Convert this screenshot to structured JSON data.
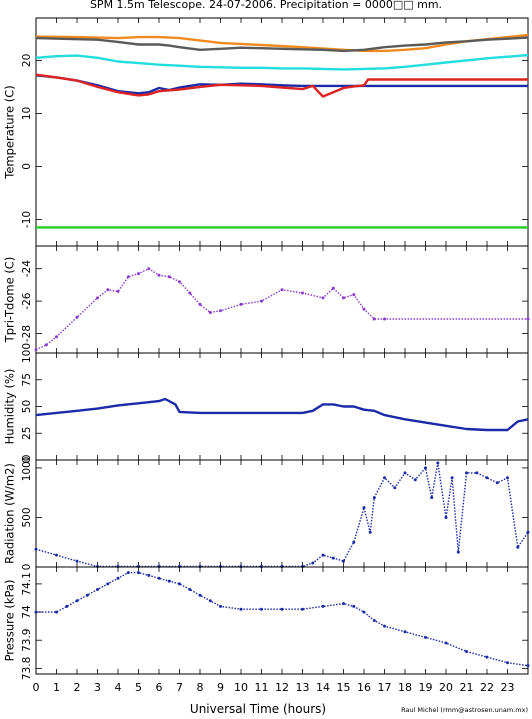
{
  "title": "SPM 1.5m Telescope. 24-07-2006. Precipitation = 0000□□ mm.",
  "x_axis": {
    "label": "Universal Time (hours)",
    "range": [
      0,
      24
    ],
    "ticks": [
      "0",
      "1",
      "2",
      "3",
      "4",
      "5",
      "6",
      "7",
      "8",
      "9",
      "10",
      "11",
      "12",
      "13",
      "14",
      "15",
      "16",
      "17",
      "18",
      "19",
      "20",
      "21",
      "22",
      "23"
    ]
  },
  "credit": "Raul Michel (rmm@astrosen.unam.mx)",
  "chart_data": [
    {
      "type": "line",
      "ylabel": "Temperature (C)",
      "ylim": [
        -15,
        28
      ],
      "yticks": [
        "-10",
        "0",
        "10",
        "20"
      ],
      "grid": false,
      "series": [
        {
          "color": "#f08a1e",
          "x": [
            0,
            2,
            4,
            5,
            6,
            7,
            9,
            11,
            13,
            15,
            16,
            17,
            18,
            19,
            20,
            21,
            22,
            23,
            24
          ],
          "values": [
            24.5,
            24.4,
            24.2,
            24.4,
            24.4,
            24.2,
            23.3,
            22.9,
            22.5,
            22.0,
            21.8,
            21.8,
            22.0,
            22.3,
            23.0,
            23.6,
            24.0,
            24.4,
            24.8
          ]
        },
        {
          "color": "#5a5a5a",
          "x": [
            0,
            2,
            3,
            4,
            5,
            6,
            6.5,
            7,
            8,
            9,
            10,
            11,
            12,
            13,
            14,
            15,
            16,
            17,
            18,
            19,
            20,
            21,
            22,
            23,
            24
          ],
          "values": [
            24.2,
            24.0,
            23.9,
            23.5,
            23.0,
            23.0,
            22.8,
            22.5,
            22.0,
            22.2,
            22.4,
            22.3,
            22.2,
            22.1,
            22.0,
            21.8,
            22.0,
            22.5,
            22.8,
            23.0,
            23.4,
            23.6,
            23.9,
            24.1,
            24.3
          ]
        },
        {
          "color": "#22dddd",
          "x": [
            0,
            1,
            2,
            3,
            4,
            5,
            6,
            7,
            8,
            9,
            10,
            11,
            12,
            13,
            14,
            15,
            16,
            17,
            18,
            19,
            20,
            21,
            22,
            23,
            24
          ],
          "values": [
            20.5,
            20.8,
            20.9,
            20.5,
            19.8,
            19.5,
            19.2,
            19.0,
            18.8,
            18.7,
            18.6,
            18.6,
            18.5,
            18.5,
            18.4,
            18.3,
            18.4,
            18.5,
            18.8,
            19.2,
            19.6,
            20.0,
            20.4,
            20.7,
            21.0
          ]
        },
        {
          "color": "#1a2aa8",
          "x": [
            0,
            1,
            2,
            3,
            4,
            5,
            5.5,
            6,
            6.5,
            7,
            8,
            9,
            10,
            11,
            12,
            13,
            14,
            15,
            16,
            17,
            24
          ],
          "values": [
            17.2,
            16.8,
            16.2,
            15.3,
            14.2,
            13.8,
            14.0,
            14.8,
            14.4,
            14.9,
            15.5,
            15.4,
            15.6,
            15.5,
            15.3,
            15.2,
            15.2,
            15.2,
            15.2,
            15.2,
            15.2
          ]
        },
        {
          "color": "#dd2222",
          "x": [
            0,
            1,
            2,
            3,
            4,
            5,
            5.5,
            6,
            7,
            8,
            9,
            10,
            11,
            12,
            13,
            13.5,
            14,
            15,
            15.5,
            16,
            16.2,
            17,
            24
          ],
          "values": [
            17.3,
            16.8,
            16.2,
            15.0,
            14.0,
            13.4,
            13.6,
            14.2,
            14.5,
            15.0,
            15.4,
            15.3,
            15.2,
            14.9,
            14.6,
            15.2,
            13.2,
            14.8,
            15.1,
            15.3,
            16.4,
            16.4,
            16.4
          ]
        },
        {
          "color": "#22cc22",
          "x": [
            0,
            24
          ],
          "values": [
            -11.5,
            -11.5
          ]
        }
      ]
    },
    {
      "type": "scatter",
      "ylabel": "Tpri-Tdome (C)",
      "ylim": [
        -29.2,
        -22.6
      ],
      "yticks": [
        "-28",
        "-26",
        "-24"
      ],
      "series": [
        {
          "color": "#8a3ad0",
          "x": [
            0,
            0.5,
            1,
            2,
            3,
            3.5,
            4,
            4.5,
            5,
            5.5,
            6,
            6.5,
            7,
            7.5,
            8,
            8.5,
            9,
            10,
            11,
            12,
            13,
            14,
            14.5,
            15,
            15.5,
            16,
            16.5,
            17,
            24
          ],
          "values": [
            -29.0,
            -28.7,
            -28.2,
            -27.0,
            -25.8,
            -25.3,
            -25.4,
            -24.5,
            -24.3,
            -24.0,
            -24.4,
            -24.5,
            -24.8,
            -25.5,
            -26.2,
            -26.7,
            -26.6,
            -26.2,
            -26.0,
            -25.3,
            -25.5,
            -25.8,
            -25.2,
            -25.8,
            -25.6,
            -26.5,
            -27.1,
            -27.1,
            -27.1
          ]
        }
      ]
    },
    {
      "type": "line",
      "ylabel": "Humidity (%)",
      "ylim": [
        0,
        100
      ],
      "yticks": [
        "0",
        "25",
        "50",
        "75",
        "100"
      ],
      "series": [
        {
          "color": "#1a2aa8",
          "x": [
            0,
            1,
            2,
            3,
            4,
            5,
            6,
            6.3,
            6.8,
            7,
            8,
            9,
            10,
            11,
            12,
            13,
            13.5,
            14,
            14.5,
            15,
            15.5,
            16,
            16.5,
            17,
            18,
            19,
            20,
            21,
            22,
            23,
            23.5,
            24
          ],
          "values": [
            42,
            44,
            46,
            48,
            51,
            53,
            55,
            57,
            52,
            45,
            44,
            44,
            44,
            44,
            44,
            44,
            46,
            52,
            52,
            50,
            50,
            47,
            46,
            42,
            38,
            35,
            32,
            29,
            28,
            28,
            36,
            38
          ]
        }
      ]
    },
    {
      "type": "scatter",
      "ylabel": "Radiation (W/m2)",
      "ylim": [
        0,
        1080
      ],
      "yticks": [
        "0",
        "500",
        "1000"
      ],
      "series": [
        {
          "color": "#1a2aa8",
          "x": [
            0,
            1,
            2,
            3,
            4,
            5,
            6,
            7,
            8,
            9,
            10,
            11,
            12,
            13,
            13.5,
            14,
            14.5,
            15,
            15.5,
            16,
            16.3,
            16.5,
            17,
            17.5,
            18,
            18.5,
            19,
            19.3,
            19.6,
            20,
            20.3,
            20.6,
            21,
            21.5,
            22,
            22.5,
            23,
            23.5,
            24
          ],
          "values": [
            180,
            120,
            60,
            5,
            5,
            5,
            5,
            5,
            5,
            5,
            5,
            5,
            5,
            5,
            40,
            120,
            90,
            60,
            250,
            600,
            350,
            700,
            900,
            800,
            950,
            880,
            1000,
            700,
            1050,
            500,
            900,
            150,
            950,
            950,
            900,
            850,
            900,
            200,
            350
          ]
        }
      ]
    },
    {
      "type": "scatter",
      "ylabel": "Pressure (kPa)",
      "ylim": [
        73.78,
        74.16
      ],
      "yticks": [
        "73.8",
        "73.9",
        "74",
        "74.1"
      ],
      "tick_labels_printed": [
        "73.8",
        "73.9",
        "74",
        "74.1"
      ],
      "series": [
        {
          "color": "#1a2aa8",
          "x": [
            0,
            1,
            1.5,
            2,
            2.5,
            3,
            3.5,
            4,
            4.5,
            5,
            5.5,
            6,
            6.5,
            7,
            7.5,
            8,
            8.5,
            9,
            10,
            11,
            12,
            13,
            14,
            15,
            15.5,
            16,
            16.5,
            17,
            18,
            19,
            20,
            21,
            22,
            23,
            24
          ],
          "values": [
            74.0,
            74.0,
            74.02,
            74.04,
            74.06,
            74.08,
            74.1,
            74.12,
            74.14,
            74.14,
            74.13,
            74.12,
            74.11,
            74.1,
            74.08,
            74.06,
            74.04,
            74.02,
            74.01,
            74.01,
            74.01,
            74.01,
            74.02,
            74.03,
            74.02,
            74.0,
            73.97,
            73.95,
            73.93,
            73.91,
            73.89,
            73.86,
            73.84,
            73.82,
            73.81
          ]
        }
      ]
    }
  ]
}
